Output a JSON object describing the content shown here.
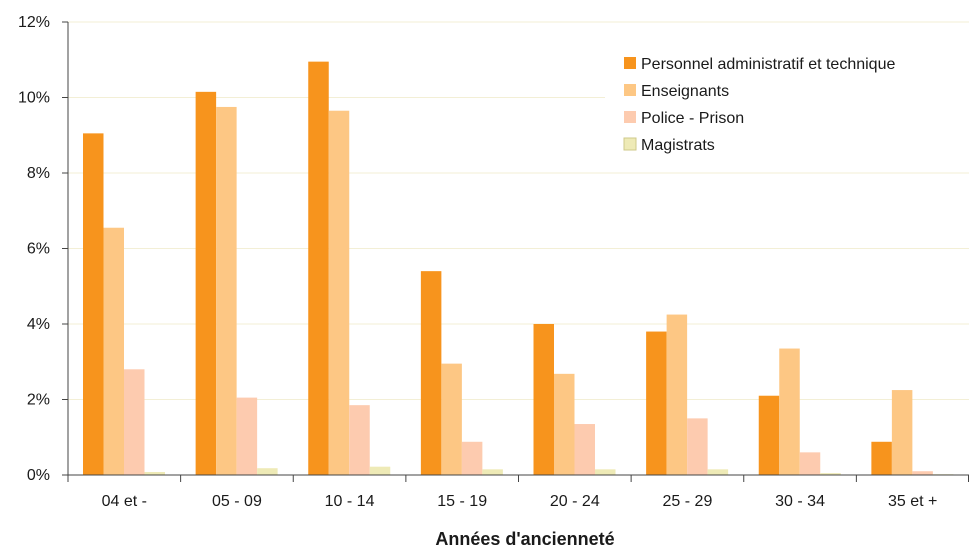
{
  "chart_data": {
    "type": "bar",
    "xlabel": "Années d'ancienneté",
    "ylabel": "",
    "ylim": [
      0,
      12
    ],
    "y_ticks": [
      "0%",
      "2%",
      "4%",
      "6%",
      "8%",
      "10%",
      "12%"
    ],
    "y_tick_values": [
      0,
      2,
      4,
      6,
      8,
      10,
      12
    ],
    "grid": true,
    "legend_position": "top-right",
    "categories": [
      "04 et -",
      "05 - 09",
      "10 - 14",
      "15 - 19",
      "20 - 24",
      "25 - 29",
      "30 - 34",
      "35 et +"
    ],
    "series": [
      {
        "name": "Personnel administratif et technique",
        "color": "#F7941D",
        "values": [
          9.05,
          10.15,
          10.95,
          5.4,
          4.0,
          3.8,
          2.1,
          0.88
        ]
      },
      {
        "name": "Enseignants",
        "color": "#FDC784",
        "values": [
          6.55,
          9.75,
          9.65,
          2.95,
          2.68,
          4.25,
          3.35,
          2.25
        ]
      },
      {
        "name": "Police - Prison",
        "color": "#FDCBAF",
        "values": [
          2.8,
          2.05,
          1.85,
          0.88,
          1.35,
          1.5,
          0.6,
          0.1
        ]
      },
      {
        "name": "Magistrats",
        "color": "#EEEAB6",
        "values": [
          0.08,
          0.18,
          0.22,
          0.15,
          0.15,
          0.15,
          0.05,
          0.02
        ]
      }
    ]
  }
}
